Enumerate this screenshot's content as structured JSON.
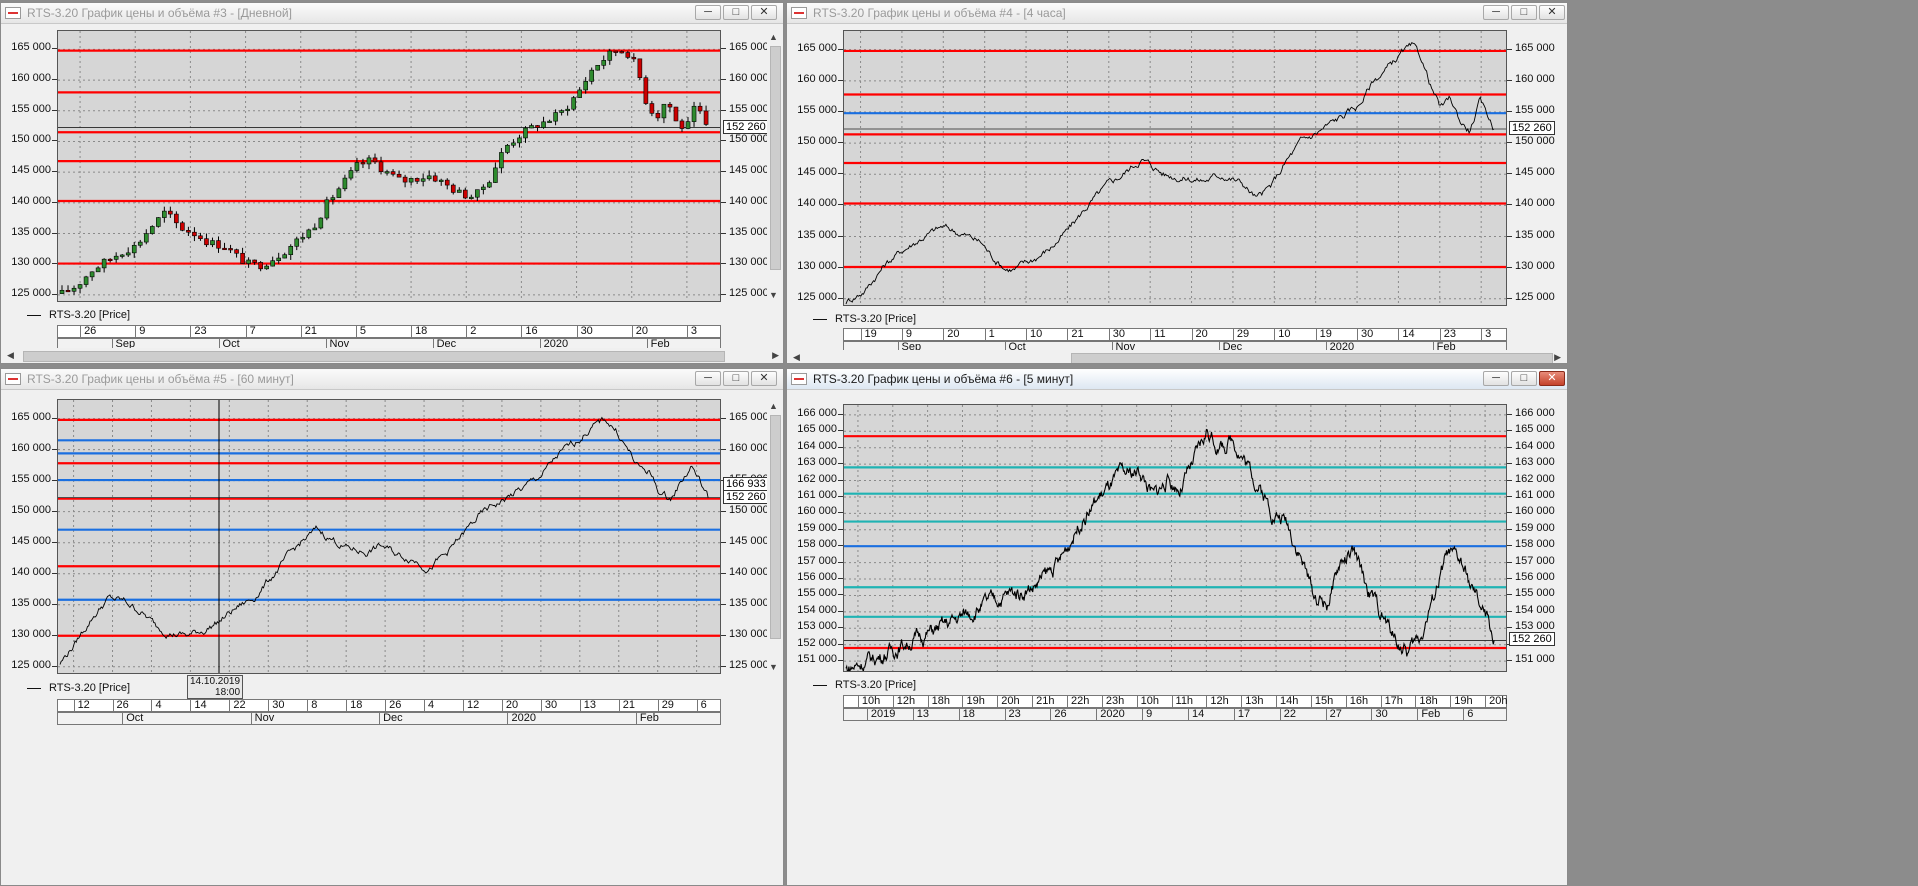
{
  "series_label": "RTS-3.20 [Price]",
  "colors": {
    "red_level": "#ff0000",
    "blue_level": "#1a6fe0",
    "teal_level": "#1fb3b3",
    "candle_up": "#2e8b2e",
    "candle_down": "#cc0000",
    "price_line": "#000000",
    "plot_bg": "#d6d6d6"
  },
  "windows": [
    {
      "id": "w3",
      "title": "RTS-3.20 График цены и объёма #3 - [Дневной]",
      "active": false,
      "y_labels": [
        "165 000",
        "160 000",
        "155 000",
        "150 000",
        "145 000",
        "140 000",
        "135 000",
        "130 000",
        "125 000"
      ],
      "last_price": "152 260",
      "x_top": [
        "26",
        "9",
        "23",
        "7",
        "21",
        "5",
        "18",
        "2",
        "16",
        "30",
        "20",
        "3"
      ],
      "x_bottom": [
        "Sep",
        "Oct",
        "Nov",
        "Dec",
        "2020",
        "Feb"
      ]
    },
    {
      "id": "w4",
      "title": "RTS-3.20 График цены и объёма #4 - [4 часа]",
      "active": false,
      "y_labels": [
        "165 000",
        "160 000",
        "155 000",
        "150 000",
        "145 000",
        "140 000",
        "135 000",
        "130 000",
        "125 000"
      ],
      "last_price": "152 260",
      "x_top": [
        "19",
        "9",
        "20",
        "1",
        "10",
        "21",
        "30",
        "11",
        "20",
        "29",
        "10",
        "19",
        "30",
        "14",
        "23",
        "3"
      ],
      "x_bottom": [
        "Sep",
        "Oct",
        "Nov",
        "Dec",
        "2020",
        "Feb"
      ]
    },
    {
      "id": "w5",
      "title": "RTS-3.20 График цены и объёма #5 - [60 минут]",
      "active": false,
      "y_labels": [
        "165 000",
        "160 000",
        "155 000",
        "150 000",
        "145 000",
        "140 000",
        "135 000",
        "130 000",
        "125 000"
      ],
      "last_price": "152 260",
      "cursor_price": "166 933",
      "crosshair_date": "14.10.2019",
      "crosshair_time": "18:00",
      "x_top": [
        "12",
        "26",
        "4",
        "14",
        "22",
        "30",
        "8",
        "18",
        "26",
        "4",
        "12",
        "20",
        "30",
        "13",
        "21",
        "29",
        "6"
      ],
      "x_bottom": [
        "Oct",
        "Nov",
        "Dec",
        "2020",
        "Feb"
      ]
    },
    {
      "id": "w6",
      "title": "RTS-3.20 График цены и объёма #6 - [5 минут]",
      "active": true,
      "y_labels": [
        "166 000",
        "165 000",
        "164 000",
        "163 000",
        "162 000",
        "161 000",
        "160 000",
        "159 000",
        "158 000",
        "157 000",
        "156 000",
        "155 000",
        "154 000",
        "153 000",
        "152 000",
        "151 000"
      ],
      "last_price": "152 260",
      "x_top": [
        "10h",
        "12h",
        "18h",
        "19h",
        "20h",
        "21h",
        "22h",
        "23h",
        "10h",
        "11h",
        "12h",
        "13h",
        "14h",
        "15h",
        "16h",
        "17h",
        "18h",
        "19h",
        "20h"
      ],
      "x_bottom": [
        "2019",
        "13",
        "18",
        "23",
        "26",
        "2020",
        "9",
        "14",
        "17",
        "22",
        "27",
        "30",
        "Feb",
        "6"
      ]
    }
  ],
  "chart_data": [
    {
      "type": "candlestick",
      "title": "RTS-3.20 График цены и объёма #3 - [Дневной]",
      "ylim": [
        124000,
        168000
      ],
      "x_range": [
        "2019-08-26",
        "2020-02-07"
      ],
      "series": [
        {
          "name": "RTS-3.20 [Price]",
          "close_path": [
            [
              0,
              125200
            ],
            [
              3,
              126500
            ],
            [
              6,
              129000
            ],
            [
              9,
              130500
            ],
            [
              12,
              132000
            ],
            [
              15,
              133000
            ],
            [
              18,
              136000
            ],
            [
              21,
              138500
            ],
            [
              24,
              136000
            ],
            [
              27,
              135000
            ],
            [
              30,
              133500
            ],
            [
              33,
              133000
            ],
            [
              36,
              131000
            ],
            [
              38,
              130000
            ],
            [
              40,
              129800
            ],
            [
              42,
              130500
            ],
            [
              45,
              132000
            ],
            [
              48,
              134000
            ],
            [
              51,
              136000
            ],
            [
              54,
              140000
            ],
            [
              57,
              143000
            ],
            [
              60,
              146000
            ],
            [
              63,
              147000
            ],
            [
              66,
              145000
            ],
            [
              69,
              143500
            ],
            [
              72,
              144000
            ],
            [
              75,
              144500
            ],
            [
              78,
              143000
            ],
            [
              81,
              141500
            ],
            [
              84,
              141000
            ],
            [
              87,
              144000
            ],
            [
              90,
              149000
            ],
            [
              93,
              151000
            ],
            [
              96,
              152500
            ],
            [
              99,
              153500
            ],
            [
              102,
              155000
            ],
            [
              105,
              158000
            ],
            [
              108,
              162000
            ],
            [
              111,
              164000
            ],
            [
              113,
              165000
            ],
            [
              115,
              164500
            ],
            [
              117,
              162000
            ],
            [
              119,
              156000
            ],
            [
              121,
              154000
            ],
            [
              123,
              157000
            ],
            [
              125,
              153000
            ],
            [
              127,
              152000
            ],
            [
              129,
              156000
            ],
            [
              131,
              152260
            ]
          ]
        }
      ],
      "levels": [
        {
          "value": 164800,
          "color": "red"
        },
        {
          "value": 158000,
          "color": "red"
        },
        {
          "value": 151500,
          "color": "red"
        },
        {
          "value": 146800,
          "color": "red"
        },
        {
          "value": 140300,
          "color": "red"
        },
        {
          "value": 130100,
          "color": "red"
        }
      ]
    },
    {
      "type": "line",
      "title": "RTS-3.20 График цены и объёма #4 - [4 часа]",
      "ylim": [
        124000,
        168000
      ],
      "x_range": [
        "2019-09-19",
        "2020-02-07"
      ],
      "series": [
        {
          "name": "RTS-3.20 [Price]",
          "close_path": [
            [
              0,
              124500
            ],
            [
              4,
              126500
            ],
            [
              8,
              130500
            ],
            [
              12,
              133000
            ],
            [
              16,
              135000
            ],
            [
              20,
              136500
            ],
            [
              24,
              135500
            ],
            [
              28,
              134000
            ],
            [
              30,
              132000
            ],
            [
              33,
              130000
            ],
            [
              35,
              129800
            ],
            [
              38,
              131000
            ],
            [
              42,
              133000
            ],
            [
              46,
              136000
            ],
            [
              50,
              140000
            ],
            [
              54,
              143000
            ],
            [
              58,
              145500
            ],
            [
              61,
              147500
            ],
            [
              63,
              146500
            ],
            [
              66,
              145000
            ],
            [
              70,
              144500
            ],
            [
              74,
              144000
            ],
            [
              78,
              145000
            ],
            [
              82,
              143500
            ],
            [
              85,
              141000
            ],
            [
              88,
              143000
            ],
            [
              91,
              147000
            ],
            [
              94,
              150000
            ],
            [
              98,
              152000
            ],
            [
              102,
              154000
            ],
            [
              106,
              156000
            ],
            [
              109,
              160000
            ],
            [
              112,
              162000
            ],
            [
              115,
              164500
            ],
            [
              117,
              165200
            ],
            [
              119,
              163500
            ],
            [
              121,
              159000
            ],
            [
              123,
              155500
            ],
            [
              125,
              157000
            ],
            [
              127,
              153500
            ],
            [
              129,
              152000
            ],
            [
              131,
              156500
            ],
            [
              133,
              154000
            ],
            [
              134,
              152260
            ]
          ]
        }
      ],
      "levels": [
        {
          "value": 164800,
          "color": "red"
        },
        {
          "value": 157800,
          "color": "red"
        },
        {
          "value": 154800,
          "color": "blue"
        },
        {
          "value": 151400,
          "color": "red"
        },
        {
          "value": 146800,
          "color": "red"
        },
        {
          "value": 140300,
          "color": "red"
        },
        {
          "value": 130100,
          "color": "red"
        }
      ]
    },
    {
      "type": "line",
      "title": "RTS-3.20 График цены и объёма #5 - [60 минут]",
      "ylim": [
        124000,
        168000
      ],
      "x_range": [
        "2019-10-01",
        "2020-02-07"
      ],
      "series": [
        {
          "name": "RTS-3.20 [Price]",
          "close_path": [
            [
              0,
              125500
            ],
            [
              3,
              129000
            ],
            [
              6,
              133000
            ],
            [
              9,
              136000
            ],
            [
              12,
              135500
            ],
            [
              15,
              134000
            ],
            [
              18,
              131500
            ],
            [
              21,
              130500
            ],
            [
              24,
              130000
            ],
            [
              27,
              131000
            ],
            [
              30,
              132500
            ],
            [
              33,
              134500
            ],
            [
              36,
              136000
            ],
            [
              39,
              139000
            ],
            [
              42,
              142000
            ],
            [
              45,
              145000
            ],
            [
              48,
              147000
            ],
            [
              51,
              145500
            ],
            [
              54,
              144000
            ],
            [
              57,
              143500
            ],
            [
              60,
              144500
            ],
            [
              63,
              143000
            ],
            [
              66,
              142500
            ],
            [
              69,
              141000
            ],
            [
              72,
              143000
            ],
            [
              75,
              146000
            ],
            [
              78,
              149000
            ],
            [
              81,
              151000
            ],
            [
              84,
              152500
            ],
            [
              87,
              154000
            ],
            [
              90,
              156000
            ],
            [
              93,
              159000
            ],
            [
              96,
              161000
            ],
            [
              99,
              163500
            ],
            [
              102,
              164800
            ],
            [
              104,
              163000
            ],
            [
              106,
              160000
            ],
            [
              108,
              157000
            ],
            [
              110,
              156500
            ],
            [
              112,
              153000
            ],
            [
              114,
              152000
            ],
            [
              116,
              155000
            ],
            [
              118,
              157500
            ],
            [
              120,
              154000
            ],
            [
              121,
              152260
            ]
          ]
        }
      ],
      "levels": [
        {
          "value": 164800,
          "color": "red"
        },
        {
          "value": 161500,
          "color": "blue"
        },
        {
          "value": 159400,
          "color": "blue"
        },
        {
          "value": 157800,
          "color": "red"
        },
        {
          "value": 155100,
          "color": "blue"
        },
        {
          "value": 152100,
          "color": "red"
        },
        {
          "value": 147100,
          "color": "blue"
        },
        {
          "value": 141200,
          "color": "red"
        },
        {
          "value": 135800,
          "color": "blue"
        },
        {
          "value": 130000,
          "color": "red"
        }
      ]
    },
    {
      "type": "line",
      "title": "RTS-3.20 График цены и объёма #6 - [5 минут]",
      "ylim": [
        150400,
        166600
      ],
      "x_range": [
        "2019-12-10",
        "2020-02-06"
      ],
      "series": [
        {
          "name": "RTS-3.20 [Price]",
          "close_path": [
            [
              0,
              150500
            ],
            [
              5,
              151300
            ],
            [
              10,
              152300
            ],
            [
              15,
              153200
            ],
            [
              20,
              154300
            ],
            [
              24,
              155000
            ],
            [
              28,
              155500
            ],
            [
              32,
              157000
            ],
            [
              35,
              159500
            ],
            [
              38,
              161000
            ],
            [
              41,
              162200
            ],
            [
              44,
              162600
            ],
            [
              46,
              161000
            ],
            [
              48,
              162000
            ],
            [
              50,
              161500
            ],
            [
              52,
              163000
            ],
            [
              54,
              165000
            ],
            [
              56,
              164000
            ],
            [
              58,
              164500
            ],
            [
              60,
              163000
            ],
            [
              62,
              161500
            ],
            [
              64,
              160000
            ],
            [
              66,
              159500
            ],
            [
              68,
              157500
            ],
            [
              70,
              155000
            ],
            [
              72,
              154500
            ],
            [
              74,
              157000
            ],
            [
              76,
              157500
            ],
            [
              78,
              155500
            ],
            [
              80,
              154000
            ],
            [
              82,
              152500
            ],
            [
              84,
              151500
            ],
            [
              86,
              152500
            ],
            [
              88,
              155000
            ],
            [
              90,
              157500
            ],
            [
              92,
              157000
            ],
            [
              94,
              155000
            ],
            [
              96,
              153500
            ],
            [
              97,
              152260
            ]
          ]
        }
      ],
      "levels": [
        {
          "value": 164700,
          "color": "red"
        },
        {
          "value": 162800,
          "color": "teal"
        },
        {
          "value": 161200,
          "color": "teal"
        },
        {
          "value": 159500,
          "color": "teal"
        },
        {
          "value": 158000,
          "color": "blue"
        },
        {
          "value": 155500,
          "color": "teal"
        },
        {
          "value": 153700,
          "color": "teal"
        },
        {
          "value": 151800,
          "color": "red"
        }
      ]
    }
  ]
}
